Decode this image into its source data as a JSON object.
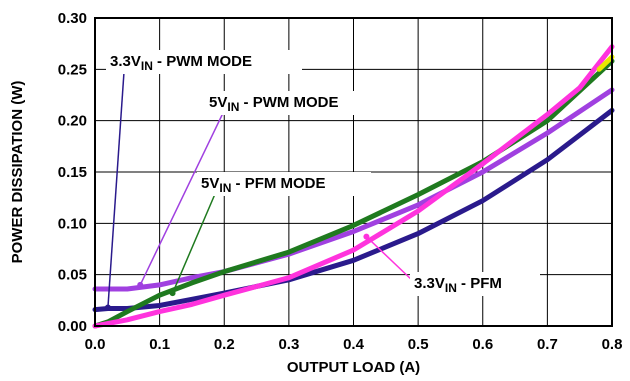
{
  "chart_data": {
    "type": "line",
    "title": "",
    "xlabel": "OUTPUT LOAD (A)",
    "ylabel": "POWER DISSIPATION (W)",
    "xlim": [
      0.0,
      0.8
    ],
    "ylim": [
      0.0,
      0.3
    ],
    "x_ticks": [
      "0.0",
      "0.1",
      "0.2",
      "0.3",
      "0.4",
      "0.5",
      "0.6",
      "0.7",
      "0.8"
    ],
    "y_ticks": [
      "0.00",
      "0.05",
      "0.10",
      "0.15",
      "0.20",
      "0.25",
      "0.30"
    ],
    "grid": true,
    "series": [
      {
        "name": "3.3VIN - PWM MODE",
        "color": "#2a1a8c",
        "points": [
          [
            0.0,
            0.016
          ],
          [
            0.02,
            0.017
          ],
          [
            0.05,
            0.017
          ],
          [
            0.1,
            0.02
          ],
          [
            0.15,
            0.026
          ],
          [
            0.2,
            0.032
          ],
          [
            0.3,
            0.045
          ],
          [
            0.4,
            0.064
          ],
          [
            0.5,
            0.09
          ],
          [
            0.6,
            0.122
          ],
          [
            0.7,
            0.162
          ],
          [
            0.8,
            0.21
          ]
        ]
      },
      {
        "name": "5VIN - PWM MODE",
        "color": "#a040e0",
        "points": [
          [
            0.0,
            0.036
          ],
          [
            0.05,
            0.036
          ],
          [
            0.1,
            0.04
          ],
          [
            0.15,
            0.047
          ],
          [
            0.2,
            0.053
          ],
          [
            0.3,
            0.07
          ],
          [
            0.4,
            0.092
          ],
          [
            0.5,
            0.118
          ],
          [
            0.6,
            0.15
          ],
          [
            0.7,
            0.188
          ],
          [
            0.8,
            0.23
          ]
        ]
      },
      {
        "name": "5VIN - PFM MODE",
        "color": "#1f7a1f",
        "points": [
          [
            0.0,
            0.0
          ],
          [
            0.02,
            0.004
          ],
          [
            0.05,
            0.014
          ],
          [
            0.1,
            0.03
          ],
          [
            0.15,
            0.042
          ],
          [
            0.2,
            0.053
          ],
          [
            0.3,
            0.072
          ],
          [
            0.4,
            0.098
          ],
          [
            0.5,
            0.128
          ],
          [
            0.6,
            0.16
          ],
          [
            0.7,
            0.2
          ],
          [
            0.8,
            0.258
          ]
        ]
      },
      {
        "name": "3.3VIN - PFM",
        "color": "#ff33dd",
        "points": [
          [
            0.0,
            0.0
          ],
          [
            0.05,
            0.006
          ],
          [
            0.1,
            0.014
          ],
          [
            0.15,
            0.021
          ],
          [
            0.2,
            0.03
          ],
          [
            0.3,
            0.047
          ],
          [
            0.4,
            0.074
          ],
          [
            0.5,
            0.112
          ],
          [
            0.6,
            0.158
          ],
          [
            0.7,
            0.206
          ],
          [
            0.75,
            0.232
          ],
          [
            0.8,
            0.272
          ]
        ]
      },
      {
        "name": "",
        "color": "#e8e800",
        "points": [
          [
            0.78,
            0.25
          ],
          [
            0.8,
            0.262
          ]
        ]
      }
    ],
    "annotations": [
      {
        "base": "3.3V",
        "sub": "IN",
        "rest": " - PWM MODE",
        "target": [
          0.02,
          0.018
        ]
      },
      {
        "base": "5V",
        "sub": "IN",
        "rest": " - PWM MODE",
        "target": [
          0.07,
          0.04
        ]
      },
      {
        "base": "5V",
        "sub": "IN",
        "rest": " - PFM MODE",
        "target": [
          0.12,
          0.032
        ]
      },
      {
        "base": "3.3V",
        "sub": "IN",
        "rest": " - PFM",
        "target": [
          0.42,
          0.087
        ]
      }
    ]
  }
}
